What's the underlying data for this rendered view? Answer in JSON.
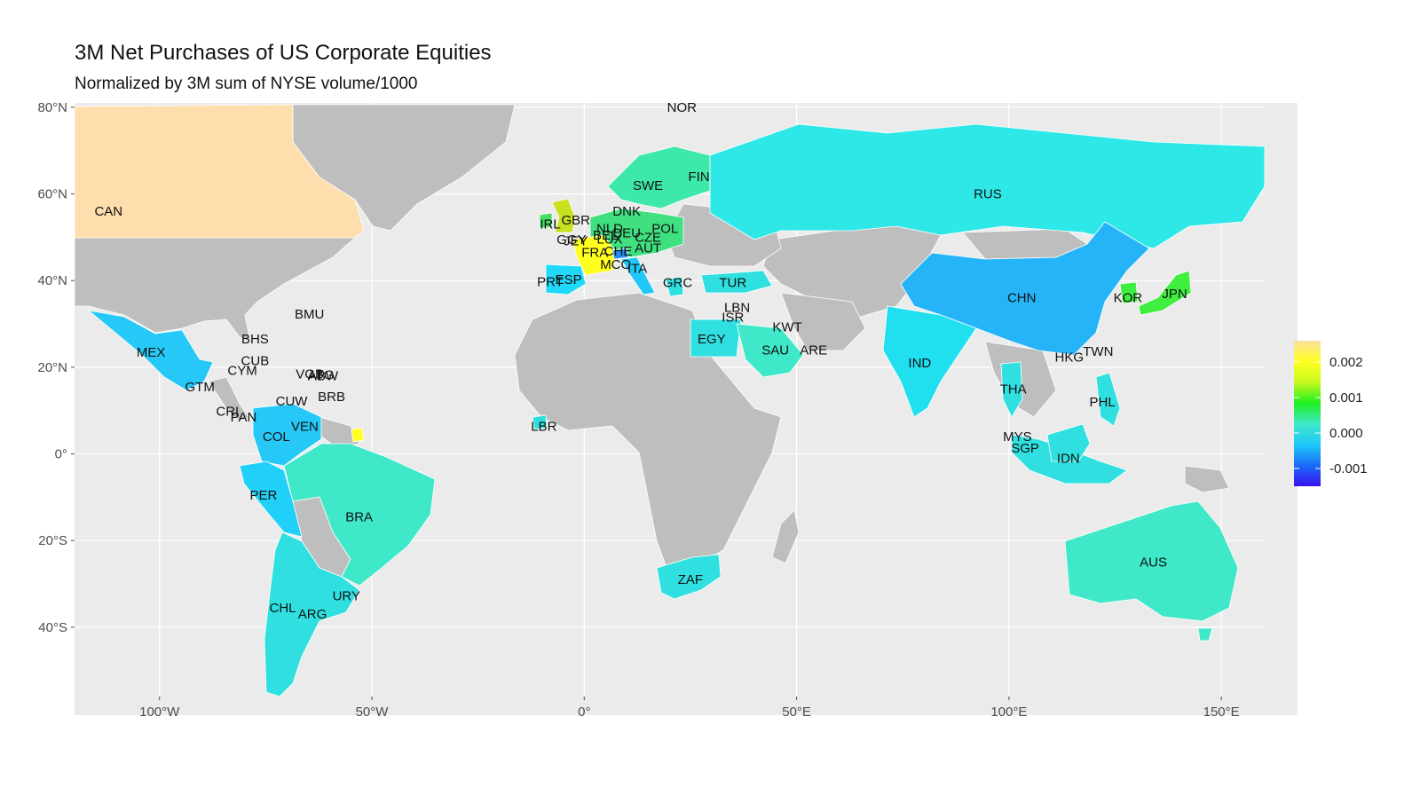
{
  "title": "3M Net Purchases of US Corporate Equities",
  "subtitle": "Normalized by 3M sum of NYSE volume/1000",
  "map": {
    "lon_range": [
      -120,
      160
    ],
    "lat_range": [
      -56,
      81
    ],
    "y_ticks": [
      {
        "lat": 80,
        "label": "80°N"
      },
      {
        "lat": 60,
        "label": "60°N"
      },
      {
        "lat": 40,
        "label": "40°N"
      },
      {
        "lat": 20,
        "label": "20°N"
      },
      {
        "lat": 0,
        "label": "0°"
      },
      {
        "lat": -20,
        "label": "20°S"
      },
      {
        "lat": -40,
        "label": "40°S"
      }
    ],
    "x_ticks": [
      {
        "lon": -100,
        "label": "100°W"
      },
      {
        "lon": -50,
        "label": "50°W"
      },
      {
        "lon": 0,
        "label": "0°"
      },
      {
        "lon": 50,
        "label": "50°E"
      },
      {
        "lon": 100,
        "label": "100°E"
      },
      {
        "lon": 150,
        "label": "150°E"
      }
    ],
    "colors": {
      "panel": "#ebebeb",
      "grid": "#ffffff",
      "no_data": "#bebebe"
    }
  },
  "legend": {
    "scale_min": -0.0015,
    "scale_max": 0.0026,
    "stops": [
      "#3a10f0",
      "#1a6cf8",
      "#1ec8f8",
      "#3ee8c8",
      "#20f020",
      "#c8f820",
      "#ffff20",
      "#ffe0a0"
    ],
    "ticks": [
      {
        "value": 0.002,
        "label": "0.002"
      },
      {
        "value": 0.001,
        "label": "0.001"
      },
      {
        "value": 0.0,
        "label": "0.000"
      },
      {
        "value": -0.001,
        "label": "-0.001"
      }
    ]
  },
  "countries": [
    {
      "code": "CAN",
      "lon": -112,
      "lat": 56,
      "color": "#ffdead",
      "value": 0.0026
    },
    {
      "code": "NOR",
      "lon": 23,
      "lat": 80,
      "color": "#3ee8a8",
      "value": 0.0005
    },
    {
      "code": "FIN",
      "lon": 27,
      "lat": 64,
      "color": "#3ee8a8",
      "value": 0.0004
    },
    {
      "code": "SWE",
      "lon": 15,
      "lat": 62,
      "color": "#40e080",
      "value": 0.0006
    },
    {
      "code": "RUS",
      "lon": 95,
      "lat": 60,
      "color": "#2ee8e8",
      "value": 0.0001
    },
    {
      "code": "DNK",
      "lon": 10,
      "lat": 56,
      "color": "#30e0c0",
      "value": 0.0003
    },
    {
      "code": "GBR",
      "lon": -2,
      "lat": 54,
      "color": "#c8e020",
      "value": 0.0014
    },
    {
      "code": "IRL",
      "lon": -8,
      "lat": 53,
      "color": "#40e060",
      "value": 0.0008
    },
    {
      "code": "NLD",
      "lon": 6,
      "lat": 52,
      "color": "#40e040",
      "value": 0.0009
    },
    {
      "code": "BEL",
      "lon": 5,
      "lat": 50.5,
      "color": "#40e040",
      "value": 0.0009
    },
    {
      "code": "DEU",
      "lon": 10,
      "lat": 51,
      "color": "#40e080",
      "value": 0.0006
    },
    {
      "code": "POL",
      "lon": 19,
      "lat": 52,
      "color": "#30e0e0",
      "value": 0.0002
    },
    {
      "code": "CZE",
      "lon": 15,
      "lat": 50,
      "color": "#30e0c0",
      "value": 0.0003
    },
    {
      "code": "LUX",
      "lon": 6,
      "lat": 49.6,
      "color": "#40e040",
      "value": 0.0009
    },
    {
      "code": "AUT",
      "lon": 15,
      "lat": 47.5,
      "color": "#40e080",
      "value": 0.0006
    },
    {
      "code": "GGY",
      "lon": -3,
      "lat": 49.5,
      "color": "#ffff20",
      "value": 0.0018
    },
    {
      "code": "JEY",
      "lon": -2,
      "lat": 49.2,
      "color": "#ffff20",
      "value": 0.0018
    },
    {
      "code": "FRA",
      "lon": 2.5,
      "lat": 46.5,
      "color": "#ffff20",
      "value": 0.0018
    },
    {
      "code": "CHE",
      "lon": 8,
      "lat": 46.8,
      "color": "#2090f8",
      "value": -0.0005
    },
    {
      "code": "MCO",
      "lon": 7.4,
      "lat": 43.7,
      "color": "#ffff20",
      "value": 0.0018
    },
    {
      "code": "ITA",
      "lon": 12.5,
      "lat": 42.8,
      "color": "#20c8f8",
      "value": -0.0002
    },
    {
      "code": "ESP",
      "lon": -3.7,
      "lat": 40.2,
      "color": "#20d8f8",
      "value": -0.0001
    },
    {
      "code": "PRT",
      "lon": -8,
      "lat": 39.7,
      "color": "#20d8f8",
      "value": -0.0001
    },
    {
      "code": "GRC",
      "lon": 22,
      "lat": 39.5,
      "color": "#30e0e0",
      "value": 0.0001
    },
    {
      "code": "TUR",
      "lon": 35,
      "lat": 39.5,
      "color": "#30e0e0",
      "value": 0.0001
    },
    {
      "code": "LBN",
      "lon": 36,
      "lat": 33.8,
      "color": "#30e0e0",
      "value": 0.0001
    },
    {
      "code": "ISR",
      "lon": 35,
      "lat": 31.5,
      "color": "#30e0e0",
      "value": 0.0001
    },
    {
      "code": "KWT",
      "lon": 47.8,
      "lat": 29.3,
      "color": "#3ee8c8",
      "value": 0.0002
    },
    {
      "code": "EGY",
      "lon": 30,
      "lat": 26.5,
      "color": "#30e0e0",
      "value": 0.0001
    },
    {
      "code": "SAU",
      "lon": 45,
      "lat": 24,
      "color": "#3ee8c8",
      "value": 0.0002
    },
    {
      "code": "ARE",
      "lon": 54,
      "lat": 24,
      "color": "#3ee8c8",
      "value": 0.0002
    },
    {
      "code": "CHN",
      "lon": 103,
      "lat": 36,
      "color": "#26b4f8",
      "value": -0.0003
    },
    {
      "code": "JPN",
      "lon": 139,
      "lat": 37,
      "color": "#40ee40",
      "value": 0.0009
    },
    {
      "code": "KOR",
      "lon": 128,
      "lat": 36,
      "color": "#40ee40",
      "value": 0.0008
    },
    {
      "code": "TWN",
      "lon": 121,
      "lat": 23.7,
      "color": "#30e0e0",
      "value": 0.0001
    },
    {
      "code": "HKG",
      "lon": 114.2,
      "lat": 22.3,
      "color": "#2090f8",
      "value": -0.0005
    },
    {
      "code": "IND",
      "lon": 79,
      "lat": 21,
      "color": "#20e0f0",
      "value": 0.0
    },
    {
      "code": "THA",
      "lon": 101,
      "lat": 15,
      "color": "#30e0e0",
      "value": 0.0001
    },
    {
      "code": "PHL",
      "lon": 122,
      "lat": 12,
      "color": "#30e0e0",
      "value": 0.0001
    },
    {
      "code": "MYS",
      "lon": 102,
      "lat": 4,
      "color": "#30e0e0",
      "value": 0.0001
    },
    {
      "code": "SGP",
      "lon": 103.8,
      "lat": 1.3,
      "color": "#30e0e0",
      "value": 0.0001
    },
    {
      "code": "IDN",
      "lon": 114,
      "lat": -1,
      "color": "#30e0e0",
      "value": 0.0001
    },
    {
      "code": "AUS",
      "lon": 134,
      "lat": -25,
      "color": "#3ee8c8",
      "value": 0.0003
    },
    {
      "code": "ZAF",
      "lon": 25,
      "lat": -29,
      "color": "#30e0e0",
      "value": 0.0001
    },
    {
      "code": "LBR",
      "lon": -9.5,
      "lat": 6.4,
      "color": "#30e0e0",
      "value": 0.0001
    },
    {
      "code": "MEX",
      "lon": -102,
      "lat": 23.5,
      "color": "#26c8f8",
      "value": -0.0001
    },
    {
      "code": "BMU",
      "lon": -64.7,
      "lat": 32.3,
      "color": "#30e0e0",
      "value": 0.0001
    },
    {
      "code": "BHS",
      "lon": -77.5,
      "lat": 26.5,
      "color": "#30e0e0",
      "value": 0.0001
    },
    {
      "code": "CUB",
      "lon": -77.5,
      "lat": 21.5,
      "color": "#30e0e0",
      "value": 0.0001
    },
    {
      "code": "CYM",
      "lon": -80.5,
      "lat": 19.3,
      "color": "#30e0e0",
      "value": 0.0001
    },
    {
      "code": "VGB",
      "lon": -64.6,
      "lat": 18.4,
      "color": "#30e0e0",
      "value": 0.0001
    },
    {
      "code": "ATG",
      "lon": -62,
      "lat": 18.2,
      "color": "#30e0e0",
      "value": 0.0001
    },
    {
      "code": "ABW",
      "lon": -61.5,
      "lat": 18.0,
      "color": "#30e0e0",
      "value": 0.0001
    },
    {
      "code": "GTM",
      "lon": -90.5,
      "lat": 15.5,
      "color": "#26c8f8",
      "value": -0.0001
    },
    {
      "code": "BRB",
      "lon": -59.5,
      "lat": 13.2,
      "color": "#30e0e0",
      "value": 0.0001
    },
    {
      "code": "CUW",
      "lon": -68.9,
      "lat": 12.2,
      "color": "#30e0e0",
      "value": 0.0001
    },
    {
      "code": "CRI",
      "lon": -84,
      "lat": 9.8,
      "color": "#26c8f8",
      "value": -0.0001
    },
    {
      "code": "PAN",
      "lon": -80.2,
      "lat": 8.5,
      "color": "#26c8f8",
      "value": -0.0001
    },
    {
      "code": "VEN",
      "lon": -65.8,
      "lat": 6.4,
      "color": "#26c8f8",
      "value": -0.0001
    },
    {
      "code": "COL",
      "lon": -72.5,
      "lat": 4,
      "color": "#26b4f8",
      "value": -0.0003
    },
    {
      "code": "PER",
      "lon": -75.5,
      "lat": -9.5,
      "color": "#20d0f8",
      "value": -0.0001
    },
    {
      "code": "BRA",
      "lon": -53,
      "lat": -14.5,
      "color": "#3ee8c8",
      "value": 0.0002
    },
    {
      "code": "URY",
      "lon": -56,
      "lat": -32.8,
      "color": "#30e0e0",
      "value": 0.0001
    },
    {
      "code": "CHL",
      "lon": -71,
      "lat": -35.5,
      "color": "#26c8f8",
      "value": -0.0001
    },
    {
      "code": "ARG",
      "lon": -64,
      "lat": -37,
      "color": "#30e0e0",
      "value": 0.0001
    }
  ]
}
